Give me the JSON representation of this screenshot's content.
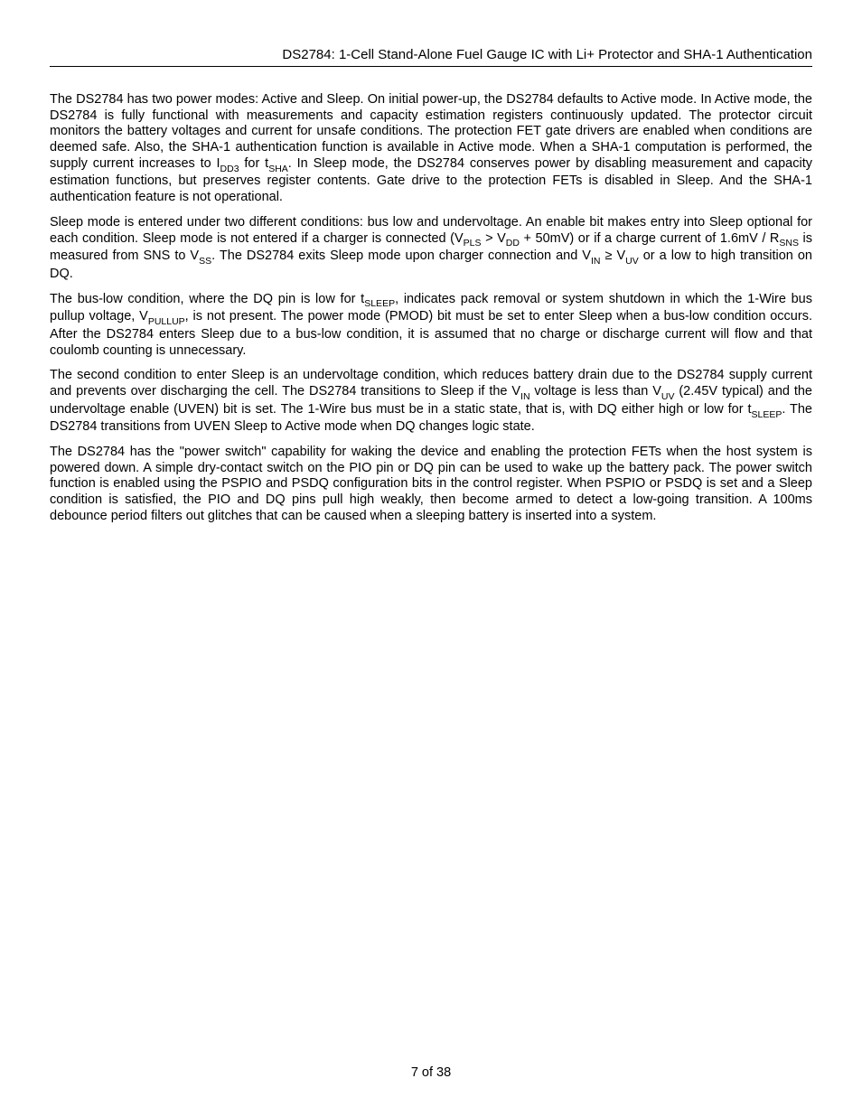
{
  "header": {
    "title": "DS2784: 1-Cell Stand-Alone Fuel Gauge IC with Li+ Protector and SHA-1 Authentication"
  },
  "paragraphs": {
    "p1": {
      "t1": "The DS2784 has two power modes: Active and Sleep. On initial power-up, the DS2784 defaults to Active mode. In Active mode, the DS2784 is fully functional with measurements and capacity estimation registers continuously updated. The protector circuit monitors the battery voltages and current for unsafe conditions. The protection FET gate drivers are enabled when conditions are deemed safe. Also, the SHA-1 authentication function is available in Active mode. When a SHA-1 computation is performed, the supply current increases to I",
      "s1": "DD3",
      "t2": " for t",
      "s2": "SHA",
      "t3": ". In Sleep mode, the DS2784 conserves power by disabling measurement and capacity estimation functions, but preserves register contents. Gate drive to the protection FETs is disabled in Sleep. And the SHA-1 authentication feature is not operational."
    },
    "p2": {
      "t1": "Sleep mode is entered under two different conditions: bus low and undervoltage. An enable bit makes entry into Sleep optional for each condition. Sleep mode is not entered if a charger is connected (V",
      "s1": "PLS",
      "t2": " > V",
      "s2": "DD",
      "t3": " + 50mV) or if a charge current of 1.6mV / R",
      "s3": "SNS",
      "t4": " is measured from SNS to V",
      "s4": "SS",
      "t5": ". The DS2784 exits Sleep mode upon charger connection and V",
      "s5": "IN",
      "t6": " ≥ V",
      "s6": "UV",
      "t7": " or a low to high transition on DQ."
    },
    "p3": {
      "t1": "The bus-low condition, where the DQ pin is low for t",
      "s1": "SLEEP",
      "t2": ", indicates pack removal or system shutdown in which the 1-Wire bus pullup voltage, V",
      "s2": "PULLUP",
      "t3": ", is not present. The power mode (PMOD) bit must be set to enter Sleep when a bus-low condition occurs. After the DS2784 enters Sleep due to a bus-low condition, it is assumed that no charge or discharge current will flow and that coulomb counting is unnecessary."
    },
    "p4": {
      "t1": "The second condition to enter Sleep is an undervoltage condition, which reduces battery drain due to the DS2784 supply current and prevents over discharging the cell. The DS2784 transitions to Sleep if the V",
      "s1": "IN",
      "t2": " voltage is less than V",
      "s2": "UV",
      "t3": " (2.45V typical) and the undervoltage enable (UVEN) bit is set. The 1-Wire bus must be in a static state, that is, with DQ either high or low for t",
      "s3": "SLEEP",
      "t4": ". The DS2784 transitions from UVEN Sleep to Active mode when DQ changes logic state."
    },
    "p5": {
      "t1": "The DS2784 has the \"power switch\" capability for waking the device and enabling the protection FETs when the host system is powered down. A simple dry-contact switch on the PIO pin or DQ pin can be used to wake up the battery pack. The power switch function is enabled using the PSPIO and PSDQ configuration bits in the control register. When PSPIO or PSDQ is set and a Sleep condition is satisfied, the PIO and DQ pins pull high weakly, then become armed to detect a low-going transition. A 100ms debounce period filters out glitches that can be caused when a sleeping battery is inserted into a system."
    }
  },
  "footer": {
    "pageinfo": "7 of 38"
  }
}
